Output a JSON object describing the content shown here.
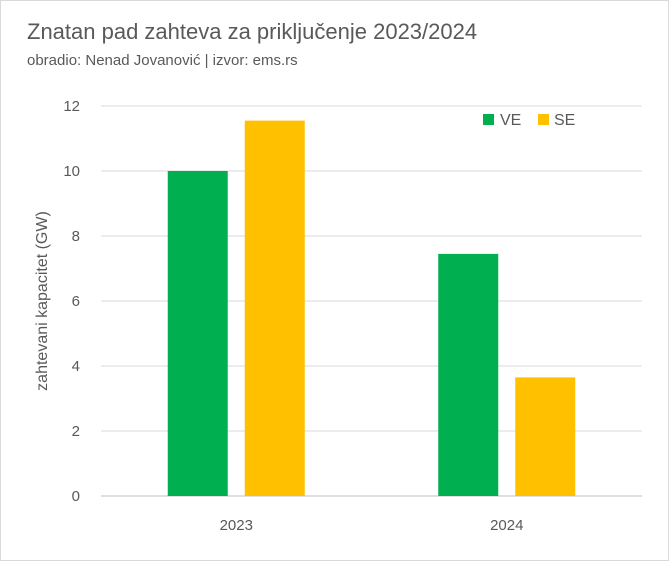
{
  "chart_data": {
    "type": "bar",
    "title": "Znatan pad zahteva za priključenje 2023/2024",
    "subtitle": "obradio: Nenad Jovanović | izvor: ems.rs",
    "xlabel": "",
    "ylabel": "zahtevani kapacitet (GW)",
    "categories": [
      "2023",
      "2024"
    ],
    "series": [
      {
        "name": "VE",
        "values": [
          10.0,
          7.45
        ],
        "color": "#00b050"
      },
      {
        "name": "SE",
        "values": [
          11.55,
          3.65
        ],
        "color": "#ffc000"
      }
    ],
    "ylim": [
      0,
      12
    ],
    "yticks": [
      "0",
      "2",
      "4",
      "6",
      "8",
      "10",
      "12"
    ],
    "grid": true,
    "legend": "top-right"
  }
}
